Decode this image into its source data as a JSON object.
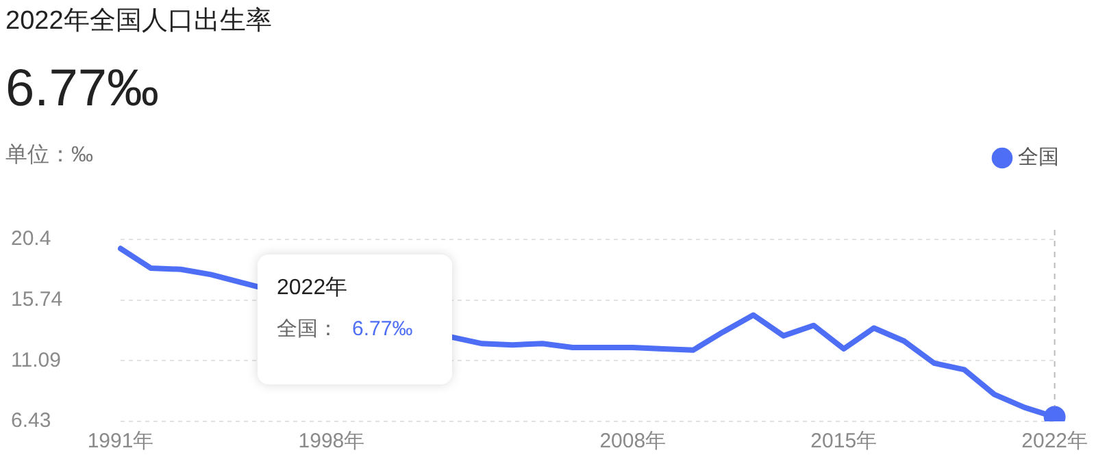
{
  "chart_data": {
    "type": "line",
    "title": "2022年全国人口出生率",
    "subtitle": "6.77‰",
    "ylabel": "单位：‰",
    "categories": [
      "1991年",
      null,
      null,
      null,
      null,
      null,
      null,
      "1998年",
      null,
      null,
      null,
      null,
      null,
      null,
      null,
      null,
      null,
      "2008年",
      null,
      null,
      null,
      null,
      null,
      null,
      "2015年",
      null,
      null,
      null,
      null,
      null,
      null,
      "2022年"
    ],
    "series": [
      {
        "name": "全国",
        "color": "#4d6ef5",
        "marker": "none",
        "values": [
          19.7,
          18.2,
          18.1,
          17.7,
          17.1,
          null,
          null,
          null,
          null,
          null,
          null,
          12.9,
          12.4,
          12.3,
          12.4,
          12.1,
          12.1,
          12.1,
          12.0,
          11.9,
          13.3,
          14.6,
          13.0,
          13.8,
          12.0,
          13.6,
          12.6,
          10.9,
          10.4,
          8.5,
          7.5,
          6.77
        ]
      },
      {
        "type": "scatter",
        "color": "#4d6ef5",
        "marker": "circle",
        "x": [
          "2022年"
        ],
        "values": [
          6.77
        ]
      }
    ],
    "ylim": [
      6.43,
      20.4
    ],
    "yticks": [
      6.43,
      11.09,
      15.74,
      20.4
    ],
    "grid": "y",
    "legend": "top right",
    "ref_lines": [
      {
        "axis": "x",
        "value": "2022年",
        "color": "#bbbbbb",
        "line_style": "dashed"
      }
    ],
    "annotations": [
      "2022年",
      "全国：",
      "6.77‰"
    ]
  }
}
